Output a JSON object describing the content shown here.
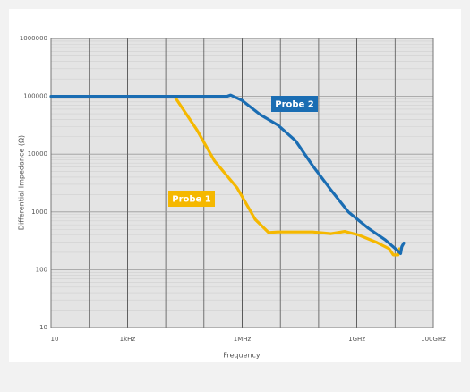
{
  "chart_data": {
    "type": "line",
    "log_x": true,
    "log_y": true,
    "grid": true,
    "minor_grid": true,
    "x_label": "Frequency",
    "y_label": "Differential Impedance (Ω)",
    "xlim": [
      10,
      100000000000
    ],
    "ylim": [
      10,
      1000000
    ],
    "xticks": [
      10,
      {
        "value": 1000,
        "label": "1kHz"
      },
      {
        "value": 1000000,
        "label": "1MHz"
      },
      {
        "value": 1000000000,
        "label": "1GHz"
      },
      {
        "value": 100000000000,
        "label": "100GHz"
      }
    ],
    "yticks": [
      10,
      100,
      1000,
      10000,
      100000,
      1000000
    ],
    "series": [
      {
        "name": "Probe 1",
        "color": "#f5b800",
        "x": [
          10,
          17000,
          66000,
          190000,
          740000,
          2200000,
          4900000,
          8500000,
          70000000,
          210000000,
          480000000,
          1100000000,
          3200000000,
          7000000000,
          9000000000,
          12000000000,
          13000000000
        ],
        "values": [
          100000,
          100000,
          26000,
          7600,
          2600,
          740,
          440,
          450,
          450,
          420,
          460,
          400,
          300,
          230,
          180,
          180,
          230
        ]
      },
      {
        "name": "Probe 2",
        "color": "#1a6db3",
        "x": [
          10,
          100000,
          400000,
          500000,
          1000000,
          3000000,
          8500000,
          25000000,
          70000000,
          200000000,
          600000000,
          2000000000,
          5500000000,
          12000000000,
          14000000000,
          15000000000,
          17000000000
        ],
        "values": [
          100000,
          100000,
          100000,
          105000,
          85000,
          48000,
          32000,
          17000,
          6300,
          2500,
          1000,
          520,
          330,
          210,
          190,
          250,
          290
        ]
      }
    ]
  }
}
